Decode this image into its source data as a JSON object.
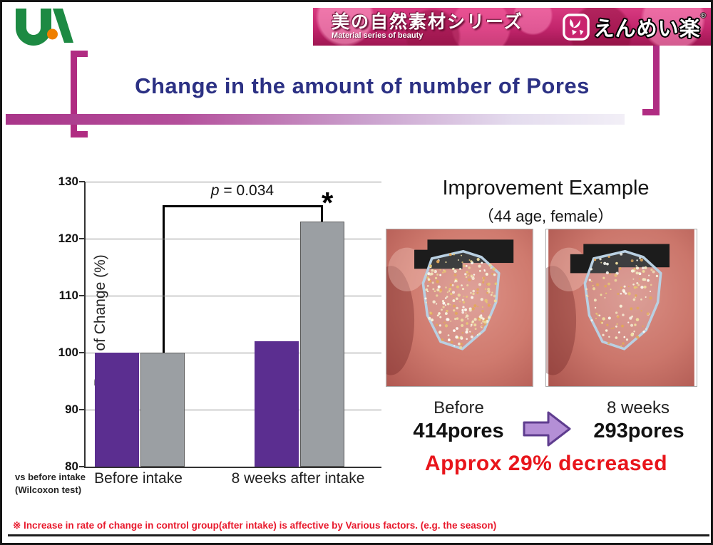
{
  "header": {
    "logo": "UA",
    "banner_title": "美の自然素材シリーズ",
    "banner_subtitle": "Material series of beauty",
    "brand_name": "えんめい楽",
    "brand_reg_mark": "®"
  },
  "title": "Change in the amount of number of Pores",
  "chart_data": {
    "type": "bar",
    "title": "",
    "ylabel": "Rate of Change (%)",
    "ylim": [
      80,
      130
    ],
    "yticks": [
      80,
      90,
      100,
      110,
      120,
      130
    ],
    "grid": true,
    "categories": [
      "Before intake",
      "8 weeks after intake"
    ],
    "series": [
      {
        "name": "purple",
        "color": "#5b2e90",
        "border": "none",
        "values": [
          100,
          102
        ]
      },
      {
        "name": "gray",
        "color": "#9b9fa3",
        "border": "#5a5a5a",
        "values": [
          100,
          123
        ]
      }
    ],
    "annotation": {
      "p_var": "p",
      "p_rest": " = 0.034",
      "significance_mark": "*"
    },
    "footnote_line1": "vs before intake",
    "footnote_line2": "(Wilcoxon test)"
  },
  "example": {
    "title": "Improvement Example",
    "subtitle": "（44 age, female）",
    "before_label": "Before",
    "before_value": "414pores",
    "after_label": "8 weeks",
    "after_value": "293pores",
    "result": "Approx 29% decreased",
    "photo_dots_before": 235,
    "photo_dots_after": 130
  },
  "footer_note": "※ Increase in rate of change in control group(after intake) is affective by Various factors. (e.g. the season)",
  "colors": {
    "title_navy": "#2c3184",
    "bracket_magenta": "#b02c82",
    "banner_pink": "#c2256c",
    "bar_purple": "#5b2e90",
    "bar_gray": "#9b9fa3",
    "result_red": "#e8151b",
    "note_red": "#e8192c",
    "arrow_fill": "#b48fd6",
    "arrow_stroke": "#5f3d8f",
    "polygon_blue": "#b9d0e2"
  }
}
